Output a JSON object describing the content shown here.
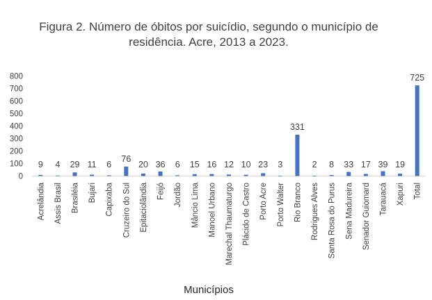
{
  "chart_data": {
    "type": "bar",
    "title_line1": "Figura 2.  Número de óbitos por suicídio, segundo o município de",
    "title_line2": "residência.  Acre, 2013 a 2023.",
    "xlabel": "Municípios",
    "ylabel": "",
    "ylim": [
      0,
      800
    ],
    "yticks": [
      0,
      100,
      200,
      300,
      400,
      500,
      600,
      700,
      800
    ],
    "grid": false,
    "bar_color": "#4472C4",
    "categories": [
      "Acrelândia",
      "Assis Brasil",
      "Brasiléia",
      "Bujari",
      "Capixaba",
      "Cruzeiro do Sul",
      "Epitaciolândia",
      "Feijó",
      "Jordão",
      "Mâncio Lima",
      "Manoel Urbano",
      "Marechal Thaumaturgo",
      "Plácido de Castro",
      "Porto Acre",
      "Porto Walter",
      "Rio Branco",
      "Rodrigues Alves",
      "Santa Rosa do Purus",
      "Sena Madureira",
      "Senador Guiomard",
      "Tarauacá",
      "Xapuri",
      "Total"
    ],
    "values": [
      9,
      4,
      29,
      11,
      6,
      76,
      20,
      36,
      6,
      15,
      16,
      12,
      10,
      23,
      3,
      331,
      2,
      8,
      33,
      17,
      39,
      19,
      725
    ]
  }
}
